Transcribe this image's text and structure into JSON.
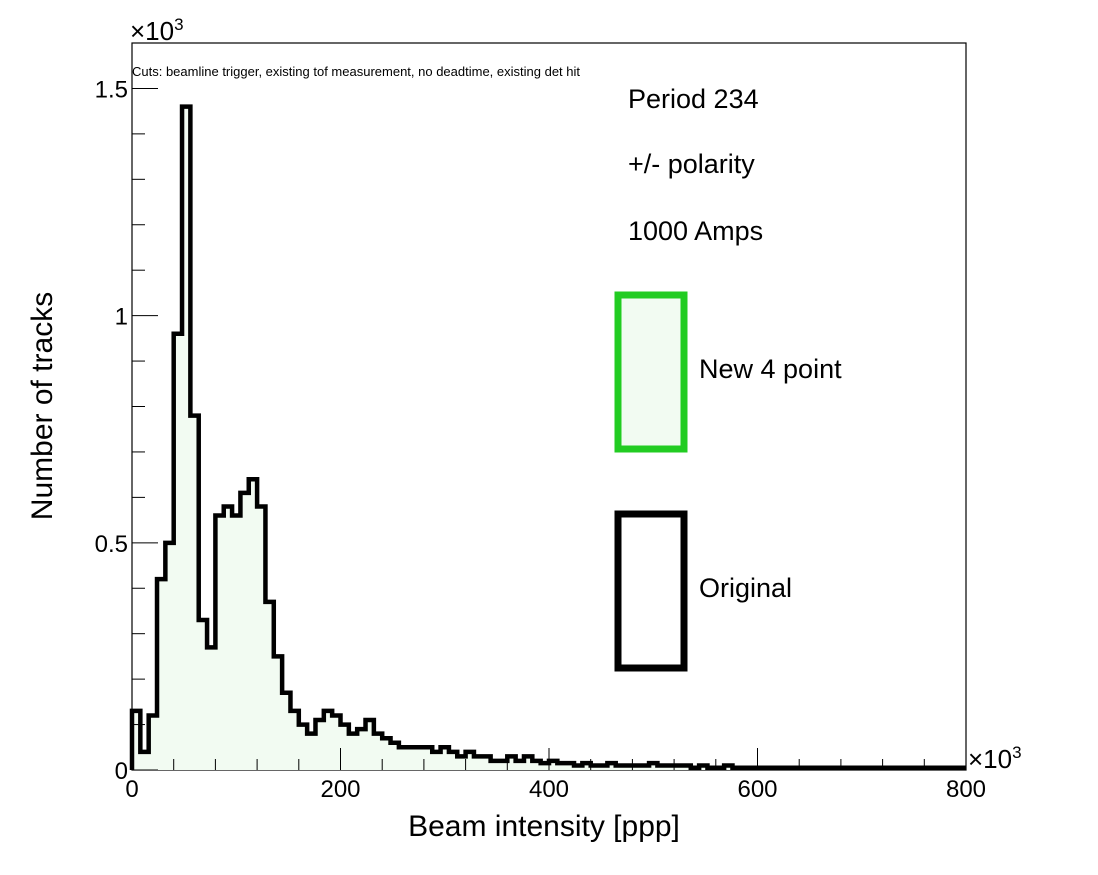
{
  "chart_data": {
    "type": "histogram",
    "cuts_note": "Cuts: beamline trigger, existing tof measurement, no deadtime, existing det hit",
    "xlabel": "Beam intensity [ppp]",
    "ylabel": "Number of tracks",
    "x_multiplier": "×10",
    "x_multiplier_exp": "3",
    "y_multiplier": "×10",
    "y_multiplier_exp": "3",
    "xlim": [
      0,
      800
    ],
    "ylim": [
      0,
      1.6
    ],
    "x_ticks": [
      {
        "value": 0,
        "label": "0"
      },
      {
        "value": 200,
        "label": "200"
      },
      {
        "value": 400,
        "label": "400"
      },
      {
        "value": 600,
        "label": "600"
      },
      {
        "value": 800,
        "label": "800"
      }
    ],
    "y_ticks": [
      {
        "value": 0,
        "label": "0"
      },
      {
        "value": 0.5,
        "label": "0.5"
      },
      {
        "value": 1,
        "label": "1"
      },
      {
        "value": 1.5,
        "label": "1.5"
      }
    ],
    "bin_width": 8,
    "annotations": [
      "Period 234",
      "+/- polarity",
      "1000 Amps"
    ],
    "legend": [
      {
        "label": "New 4 point",
        "line_color": "#22cc22",
        "fill_color": "#f2fbf2"
      },
      {
        "label": "Original",
        "line_color": "#000000",
        "fill_color": "#ffffff"
      }
    ],
    "series": [
      {
        "name": "New 4 point",
        "line_color": "#22cc22",
        "fill_color": "#f2fbf2",
        "values": [
          0.13,
          0.04,
          0.12,
          0.42,
          0.5,
          0.96,
          1.46,
          0.78,
          0.33,
          0.27,
          0.56,
          0.58,
          0.56,
          0.61,
          0.64,
          0.58,
          0.37,
          0.25,
          0.17,
          0.13,
          0.1,
          0.08,
          0.11,
          0.13,
          0.12,
          0.1,
          0.08,
          0.09,
          0.11,
          0.08,
          0.07,
          0.06,
          0.05,
          0.05,
          0.05,
          0.05,
          0.04,
          0.05,
          0.04,
          0.03,
          0.04,
          0.03,
          0.03,
          0.02,
          0.02,
          0.03,
          0.02,
          0.03,
          0.02,
          0.015,
          0.02,
          0.015,
          0.015,
          0.01,
          0.015,
          0.01,
          0.01,
          0.015,
          0.01,
          0.01,
          0.01,
          0.01,
          0.015,
          0.01,
          0.01,
          0.01,
          0.01,
          0.005,
          0.01,
          0.005,
          0.005,
          0.01,
          0.005,
          0.005,
          0.005,
          0.005,
          0.005,
          0.005,
          0.005,
          0.005,
          0.005,
          0.005,
          0.005,
          0.005,
          0.005,
          0.005,
          0.005,
          0.005,
          0.005,
          0.005,
          0.005,
          0.005,
          0.005,
          0.005,
          0.005,
          0.005,
          0.005,
          0.005,
          0.005,
          0.005
        ]
      },
      {
        "name": "Original",
        "line_color": "#000000",
        "fill_color": "none",
        "values": [
          0.13,
          0.04,
          0.12,
          0.42,
          0.5,
          0.96,
          1.46,
          0.78,
          0.33,
          0.27,
          0.56,
          0.58,
          0.56,
          0.61,
          0.64,
          0.58,
          0.37,
          0.25,
          0.17,
          0.13,
          0.1,
          0.08,
          0.11,
          0.13,
          0.12,
          0.1,
          0.08,
          0.09,
          0.11,
          0.08,
          0.07,
          0.06,
          0.05,
          0.05,
          0.05,
          0.05,
          0.04,
          0.05,
          0.04,
          0.03,
          0.04,
          0.03,
          0.03,
          0.02,
          0.02,
          0.03,
          0.02,
          0.03,
          0.02,
          0.015,
          0.02,
          0.015,
          0.015,
          0.01,
          0.015,
          0.01,
          0.01,
          0.015,
          0.01,
          0.01,
          0.01,
          0.01,
          0.015,
          0.01,
          0.01,
          0.01,
          0.01,
          0.005,
          0.01,
          0.005,
          0.005,
          0.01,
          0.005,
          0.005,
          0.005,
          0.005,
          0.005,
          0.005,
          0.005,
          0.005,
          0.005,
          0.005,
          0.005,
          0.005,
          0.005,
          0.005,
          0.005,
          0.005,
          0.005,
          0.005,
          0.005,
          0.005,
          0.005,
          0.005,
          0.005,
          0.005,
          0.005,
          0.005,
          0.005,
          0.005
        ]
      }
    ]
  }
}
